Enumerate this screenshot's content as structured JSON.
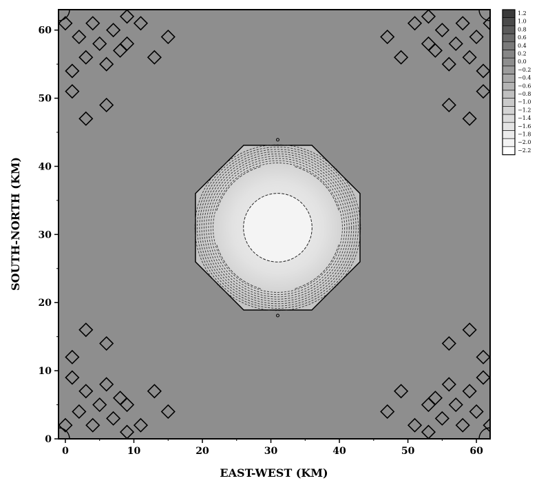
{
  "chart_data": {
    "type": "heatmap",
    "title": "",
    "xlabel": "EAST-WEST (KM)",
    "ylabel": "SOUTH-NORTH (KM)",
    "xlim": [
      -1,
      62
    ],
    "ylim": [
      0,
      63
    ],
    "x_ticks": [
      "0",
      "10",
      "20",
      "30",
      "40",
      "50",
      "60"
    ],
    "y_ticks": [
      "0",
      "10",
      "20",
      "30",
      "40",
      "50",
      "60"
    ],
    "background_level": "0.0",
    "colorbar": {
      "levels": [
        "1.2",
        "1.0",
        "0.8",
        "0.6",
        "0.4",
        "0.2",
        "0.0",
        "−0.2",
        "−0.4",
        "−0.6",
        "−0.8",
        "−1.0",
        "−1.2",
        "−1.4",
        "−1.6",
        "−1.8",
        "−2.0",
        "−2.2"
      ],
      "colors": [
        "#3a3a3a",
        "#4a4a4a",
        "#5a5a5a",
        "#6a6a6a",
        "#7a7a7a",
        "#868686",
        "#8e8e8e",
        "#9c9c9c",
        "#a8a8a8",
        "#b4b4b4",
        "#c0c0c0",
        "#cacaca",
        "#d4d4d4",
        "#dcdcdc",
        "#e4e4e4",
        "#ececec",
        "#f4f4f4",
        "#ffffff"
      ]
    },
    "features": {
      "central_depression": {
        "center": [
          31,
          31
        ],
        "outer_radius_km": 13,
        "inner_radius_km": 5
      },
      "corner_diamond_clusters": [
        {
          "corner": "top-left",
          "diamonds": [
            [
              1,
              54
            ],
            [
              3,
              56
            ],
            [
              5,
              58
            ],
            [
              7,
              60
            ],
            [
              9,
              62
            ],
            [
              2,
              59
            ],
            [
              4,
              61
            ],
            [
              6,
              55
            ],
            [
              8,
              57
            ],
            [
              1,
              51
            ],
            [
              3,
              47
            ],
            [
              6,
              49
            ],
            [
              9,
              58
            ],
            [
              11,
              61
            ],
            [
              13,
              56
            ],
            [
              15,
              59
            ],
            [
              0,
              61
            ]
          ]
        },
        {
          "corner": "top-right",
          "diamonds": [
            [
              61,
              54
            ],
            [
              59,
              56
            ],
            [
              57,
              58
            ],
            [
              55,
              60
            ],
            [
              53,
              62
            ],
            [
              60,
              59
            ],
            [
              58,
              61
            ],
            [
              56,
              55
            ],
            [
              54,
              57
            ],
            [
              61,
              51
            ],
            [
              59,
              47
            ],
            [
              56,
              49
            ],
            [
              53,
              58
            ],
            [
              51,
              61
            ],
            [
              49,
              56
            ],
            [
              47,
              59
            ],
            [
              62,
              61
            ]
          ]
        },
        {
          "corner": "bottom-left",
          "diamonds": [
            [
              1,
              9
            ],
            [
              3,
              7
            ],
            [
              5,
              5
            ],
            [
              7,
              3
            ],
            [
              9,
              1
            ],
            [
              2,
              4
            ],
            [
              4,
              2
            ],
            [
              6,
              8
            ],
            [
              8,
              6
            ],
            [
              1,
              12
            ],
            [
              3,
              16
            ],
            [
              6,
              14
            ],
            [
              9,
              5
            ],
            [
              11,
              2
            ],
            [
              13,
              7
            ],
            [
              15,
              4
            ],
            [
              0,
              2
            ]
          ]
        },
        {
          "corner": "bottom-right",
          "diamonds": [
            [
              61,
              9
            ],
            [
              59,
              7
            ],
            [
              57,
              5
            ],
            [
              55,
              3
            ],
            [
              53,
              1
            ],
            [
              60,
              4
            ],
            [
              58,
              2
            ],
            [
              56,
              8
            ],
            [
              54,
              6
            ],
            [
              61,
              12
            ],
            [
              59,
              16
            ],
            [
              56,
              14
            ],
            [
              53,
              5
            ],
            [
              51,
              2
            ],
            [
              49,
              7
            ],
            [
              47,
              4
            ],
            [
              62,
              2
            ]
          ]
        }
      ]
    }
  }
}
